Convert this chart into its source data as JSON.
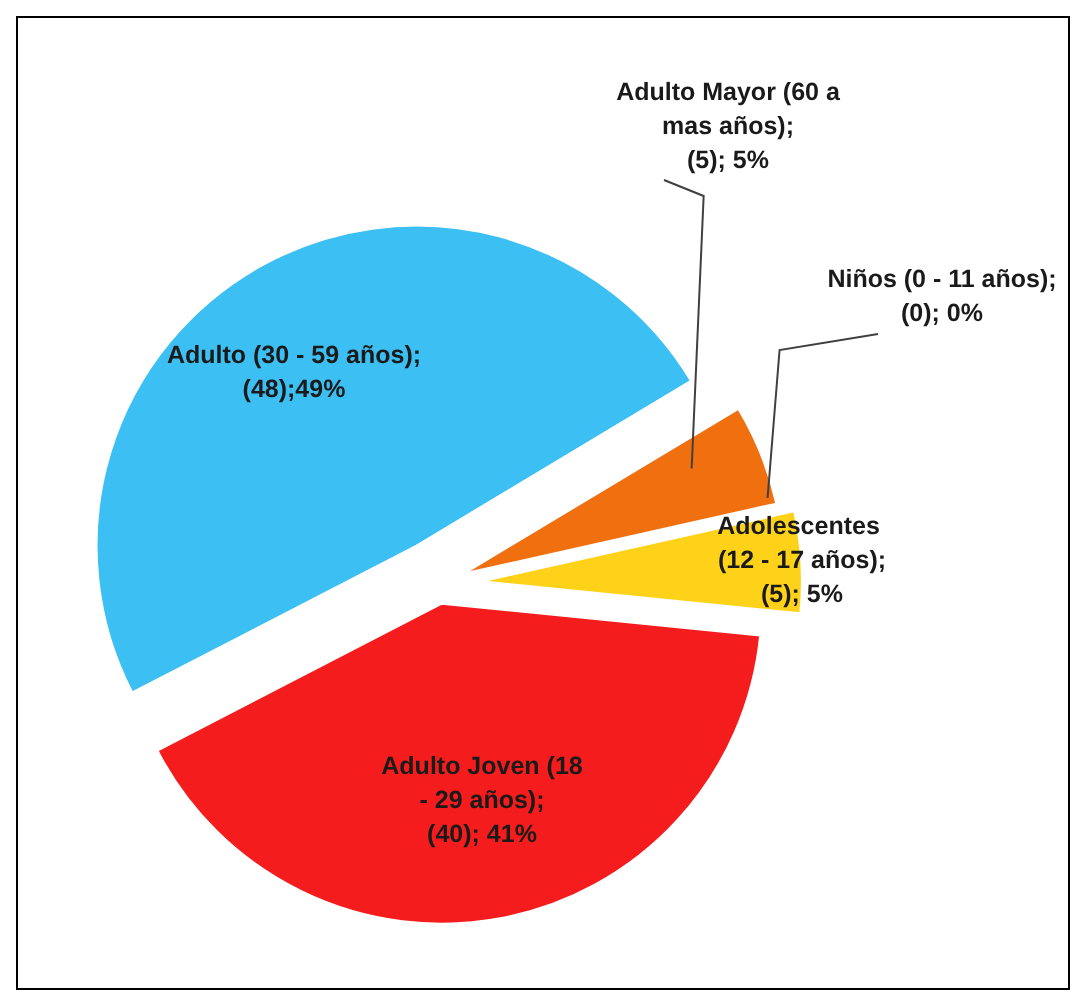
{
  "chart_data": {
    "type": "pie",
    "categories": [
      "Adulto Mayor (60 a mas años)",
      "Niños (0 - 11 años)",
      "Adolescentes  (12 - 17 años)",
      "Adulto Joven (18 - 29 años)",
      "Adulto (30 - 59 años)"
    ],
    "values": [
      5,
      0,
      5,
      40,
      48
    ],
    "colors": [
      "#f07010",
      "#9bbb59",
      "#ffd21a",
      "#f41c1c",
      "#3cbff2"
    ],
    "value_labels": [
      "; (5); 5%",
      "; (0); 0%",
      "; (5); 5%",
      "; (40); 41%",
      "; (48);49%"
    ]
  }
}
